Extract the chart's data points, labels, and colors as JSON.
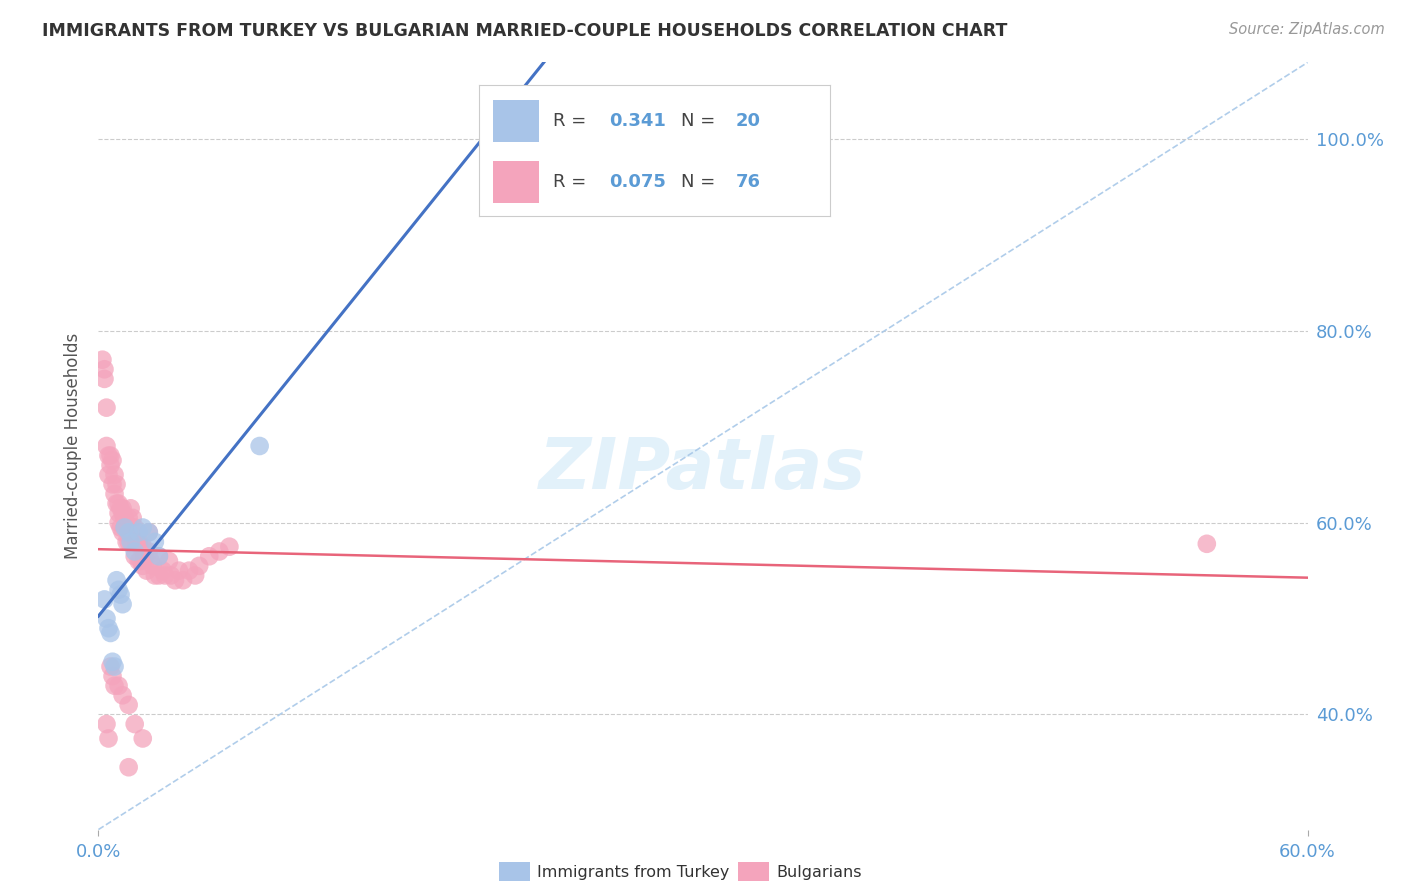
{
  "title": "IMMIGRANTS FROM TURKEY VS BULGARIAN MARRIED-COUPLE HOUSEHOLDS CORRELATION CHART",
  "source": "Source: ZipAtlas.com",
  "ylabel": "Married-couple Households",
  "xlim": [
    0.0,
    0.6
  ],
  "ylim": [
    0.28,
    1.08
  ],
  "y_ticks": [
    0.4,
    0.6,
    0.8,
    1.0
  ],
  "y_tick_labels": [
    "40.0%",
    "60.0%",
    "80.0%",
    "100.0%"
  ],
  "x_tick_left": "0.0%",
  "x_tick_right": "60.0%",
  "blue_color": "#a8c4e8",
  "pink_color": "#f4a4bc",
  "trendline_blue_color": "#4472c4",
  "trendline_pink_color": "#e8647a",
  "diagonal_color": "#a8c8e8",
  "background_color": "#ffffff",
  "grid_color": "#cccccc",
  "blue_R": "0.341",
  "blue_N": "20",
  "pink_R": "0.075",
  "pink_N": "76",
  "blue_points_x": [
    0.003,
    0.004,
    0.005,
    0.006,
    0.007,
    0.008,
    0.009,
    0.01,
    0.011,
    0.012,
    0.013,
    0.015,
    0.016,
    0.018,
    0.02,
    0.022,
    0.025,
    0.028,
    0.03,
    0.08
  ],
  "blue_points_y": [
    0.52,
    0.5,
    0.49,
    0.485,
    0.455,
    0.45,
    0.54,
    0.53,
    0.525,
    0.515,
    0.595,
    0.59,
    0.58,
    0.57,
    0.59,
    0.595,
    0.59,
    0.58,
    0.565,
    0.68
  ],
  "pink_points_x": [
    0.002,
    0.003,
    0.003,
    0.004,
    0.004,
    0.005,
    0.005,
    0.006,
    0.006,
    0.007,
    0.007,
    0.008,
    0.008,
    0.009,
    0.009,
    0.01,
    0.01,
    0.01,
    0.011,
    0.011,
    0.012,
    0.012,
    0.012,
    0.013,
    0.013,
    0.014,
    0.014,
    0.015,
    0.015,
    0.016,
    0.016,
    0.017,
    0.017,
    0.018,
    0.018,
    0.019,
    0.02,
    0.02,
    0.021,
    0.021,
    0.022,
    0.022,
    0.023,
    0.024,
    0.025,
    0.025,
    0.026,
    0.027,
    0.028,
    0.03,
    0.03,
    0.032,
    0.033,
    0.035,
    0.036,
    0.038,
    0.04,
    0.042,
    0.045,
    0.048,
    0.05,
    0.055,
    0.06,
    0.065,
    0.004,
    0.005,
    0.006,
    0.007,
    0.008,
    0.01,
    0.012,
    0.015,
    0.018,
    0.022,
    0.55,
    0.015
  ],
  "pink_points_y": [
    0.77,
    0.75,
    0.76,
    0.68,
    0.72,
    0.67,
    0.65,
    0.67,
    0.66,
    0.665,
    0.64,
    0.65,
    0.63,
    0.64,
    0.62,
    0.62,
    0.61,
    0.6,
    0.615,
    0.595,
    0.61,
    0.59,
    0.615,
    0.605,
    0.595,
    0.6,
    0.58,
    0.605,
    0.58,
    0.615,
    0.595,
    0.605,
    0.58,
    0.595,
    0.565,
    0.58,
    0.58,
    0.56,
    0.575,
    0.56,
    0.575,
    0.555,
    0.565,
    0.55,
    0.59,
    0.57,
    0.56,
    0.555,
    0.545,
    0.565,
    0.545,
    0.55,
    0.545,
    0.56,
    0.545,
    0.54,
    0.55,
    0.54,
    0.55,
    0.545,
    0.555,
    0.565,
    0.57,
    0.575,
    0.39,
    0.375,
    0.45,
    0.44,
    0.43,
    0.43,
    0.42,
    0.41,
    0.39,
    0.375,
    0.578,
    0.345
  ],
  "watermark": "ZIPatlas",
  "watermark_color": "#d0e8f8"
}
